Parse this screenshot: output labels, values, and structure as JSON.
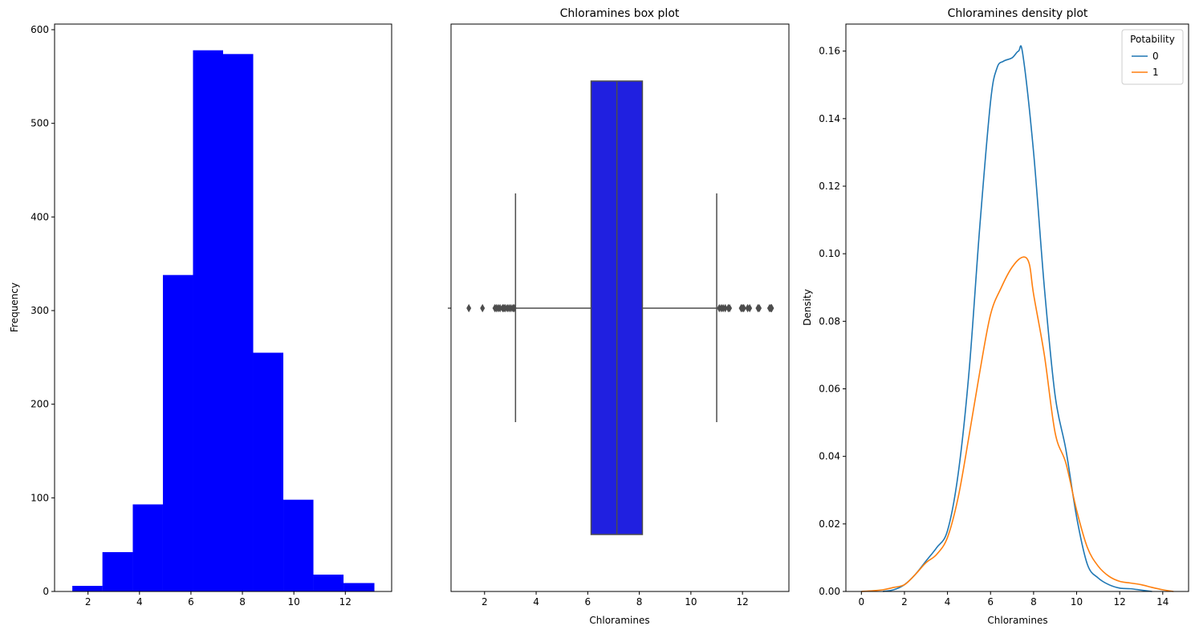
{
  "figure": {
    "background": "#ffffff"
  },
  "chart_data": [
    {
      "type": "bar",
      "subtype": "histogram",
      "title": "",
      "xlabel": "",
      "ylabel": "Frequency",
      "bar_color": "#0000ff",
      "xlim": [
        0.7,
        13.8
      ],
      "ylim": [
        0,
        606
      ],
      "xticks": [
        2,
        4,
        6,
        8,
        10,
        12
      ],
      "yticks": [
        0,
        100,
        200,
        300,
        400,
        500,
        600
      ],
      "bin_edges": [
        1.39,
        2.56,
        3.74,
        4.91,
        6.08,
        7.25,
        8.42,
        9.59,
        10.76,
        11.93,
        13.13
      ],
      "values": [
        6,
        42,
        93,
        338,
        578,
        574,
        255,
        98,
        18,
        9
      ]
    },
    {
      "type": "box",
      "title": "Chloramines box plot",
      "xlabel": "Chloramines",
      "ylabel": "",
      "box_color": "#2020e0",
      "line_color": "#4d4d4d",
      "xlim": [
        0.7,
        13.8
      ],
      "xticks": [
        2,
        4,
        6,
        8,
        10,
        12
      ],
      "stats": {
        "whisker_low": 3.2,
        "q1": 6.13,
        "median": 7.13,
        "q3": 8.12,
        "whisker_high": 11.0
      },
      "outliers": [
        1.39,
        1.92,
        2.4,
        2.46,
        2.53,
        2.6,
        2.7,
        2.75,
        2.8,
        2.88,
        2.95,
        3.02,
        3.1,
        3.15,
        11.1,
        11.18,
        11.25,
        11.33,
        11.45,
        11.5,
        11.95,
        12.0,
        12.05,
        12.2,
        12.28,
        12.6,
        12.65,
        13.05,
        13.1,
        13.13
      ]
    },
    {
      "type": "line",
      "subtype": "density",
      "title": "Chloramines density plot",
      "xlabel": "Chloramines",
      "ylabel": "Density",
      "xlim": [
        -0.72,
        15.2
      ],
      "ylim": [
        0,
        0.168
      ],
      "xticks": [
        0,
        2,
        4,
        6,
        8,
        10,
        12,
        14
      ],
      "yticks": [
        0.0,
        0.02,
        0.04,
        0.06,
        0.08,
        0.1,
        0.12,
        0.14,
        0.16
      ],
      "ytick_labels": [
        "0.00",
        "0.02",
        "0.04",
        "0.06",
        "0.08",
        "0.10",
        "0.12",
        "0.14",
        "0.16"
      ],
      "legend": {
        "title": "Potability",
        "position": "top-right"
      },
      "series": [
        {
          "name": "0",
          "color": "#1f77b4",
          "x": [
            1.0,
            1.5,
            2.0,
            2.5,
            3.0,
            3.5,
            4.0,
            4.5,
            5.0,
            5.5,
            6.0,
            6.3,
            6.6,
            7.0,
            7.3,
            7.5,
            8.0,
            8.5,
            9.0,
            9.5,
            10.0,
            10.5,
            11.0,
            11.5,
            12.0,
            12.5,
            13.0,
            13.5
          ],
          "y": [
            0.0,
            0.0005,
            0.002,
            0.005,
            0.009,
            0.013,
            0.018,
            0.035,
            0.065,
            0.108,
            0.145,
            0.155,
            0.157,
            0.158,
            0.16,
            0.159,
            0.13,
            0.09,
            0.058,
            0.042,
            0.022,
            0.008,
            0.004,
            0.002,
            0.001,
            0.0008,
            0.0004,
            0.0
          ]
        },
        {
          "name": "1",
          "color": "#ff7f0e",
          "x": [
            0.0,
            0.5,
            1.0,
            1.5,
            2.0,
            2.5,
            3.0,
            3.5,
            4.0,
            4.5,
            5.0,
            5.5,
            6.0,
            6.5,
            7.0,
            7.5,
            7.8,
            8.0,
            8.5,
            9.0,
            9.5,
            10.0,
            10.5,
            11.0,
            11.5,
            12.0,
            12.5,
            13.0,
            13.5,
            14.0,
            14.5
          ],
          "y": [
            0.0,
            0.0002,
            0.0005,
            0.0012,
            0.002,
            0.005,
            0.0085,
            0.011,
            0.016,
            0.028,
            0.046,
            0.065,
            0.082,
            0.09,
            0.096,
            0.099,
            0.097,
            0.088,
            0.07,
            0.047,
            0.038,
            0.024,
            0.013,
            0.0075,
            0.0045,
            0.003,
            0.0025,
            0.002,
            0.0012,
            0.0005,
            0.0
          ]
        }
      ]
    }
  ]
}
